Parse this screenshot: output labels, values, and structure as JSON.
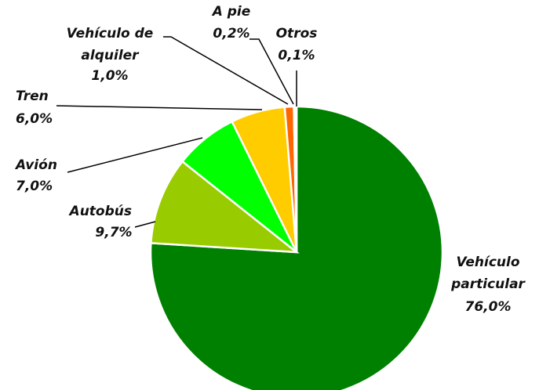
{
  "chart_data": {
    "type": "pie",
    "categories": [
      "Vehículo\nparticular",
      "Autobús",
      "Avión",
      "Tren",
      "Vehículo de\nalquiler",
      "A pie",
      "Otros"
    ],
    "values": [
      76.0,
      9.7,
      7.0,
      6.0,
      1.0,
      0.2,
      0.1
    ],
    "value_labels": [
      "76,0%",
      "9,7%",
      "7,0%",
      "6,0%",
      "1,0%",
      "0,2%",
      "0,1%"
    ],
    "colors": [
      "#008000",
      "#99cc00",
      "#00ff00",
      "#ffcc00",
      "#ff6600",
      "#ff3300",
      "#cc0000"
    ]
  }
}
